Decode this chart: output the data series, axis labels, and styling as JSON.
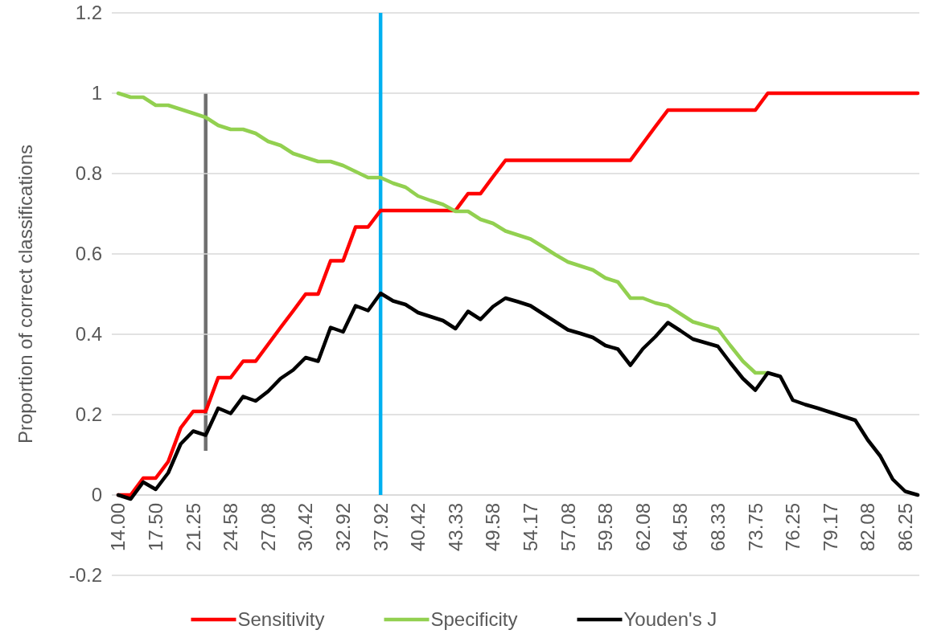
{
  "chart_data": {
    "type": "line",
    "ylabel": "Proportion of correct classifications",
    "categories": [
      "14.00",
      null,
      null,
      "17.50",
      null,
      null,
      "21.25",
      null,
      null,
      "24.58",
      null,
      null,
      "27.08",
      null,
      null,
      "30.42",
      null,
      null,
      "32.92",
      null,
      null,
      "37.92",
      null,
      null,
      "40.42",
      null,
      null,
      "43.33",
      null,
      null,
      "49.58",
      null,
      null,
      "54.17",
      null,
      null,
      "57.08",
      null,
      null,
      "59.58",
      null,
      null,
      "62.08",
      null,
      null,
      "64.58",
      null,
      null,
      "68.33",
      null,
      null,
      "73.75",
      null,
      null,
      "76.25",
      null,
      null,
      "79.17",
      null,
      null,
      "82.08",
      null,
      null,
      "86.25",
      null
    ],
    "series": [
      {
        "name": "Sensitivity",
        "color": "#ff0000",
        "values": [
          0,
          0,
          0.042,
          0.042,
          0.083,
          0.167,
          0.208,
          0.208,
          0.292,
          0.292,
          0.333,
          0.333,
          0.375,
          0.417,
          0.458,
          0.5,
          0.5,
          0.583,
          0.583,
          0.667,
          0.667,
          0.708,
          0.708,
          0.708,
          0.708,
          0.708,
          0.708,
          0.708,
          0.75,
          0.75,
          0.792,
          0.833,
          0.833,
          0.833,
          0.833,
          0.833,
          0.833,
          0.833,
          0.833,
          0.833,
          0.833,
          0.833,
          0.875,
          0.917,
          0.958,
          0.958,
          0.958,
          0.958,
          0.958,
          0.958,
          0.958,
          0.958,
          1,
          1,
          1,
          1,
          1,
          1,
          1,
          1,
          1,
          1,
          1,
          1,
          1
        ]
      },
      {
        "name": "Specificity",
        "color": "#92d050",
        "values": [
          1,
          0.99,
          0.99,
          0.97,
          0.97,
          0.96,
          0.95,
          0.94,
          0.92,
          0.91,
          0.91,
          0.9,
          0.88,
          0.87,
          0.85,
          0.84,
          0.83,
          0.83,
          0.82,
          0.805,
          0.79,
          0.79,
          0.776,
          0.766,
          0.744,
          0.733,
          0.723,
          0.706,
          0.706,
          0.686,
          0.676,
          0.657,
          0.647,
          0.637,
          0.618,
          0.598,
          0.58,
          0.57,
          0.56,
          0.54,
          0.53,
          0.49,
          0.49,
          0.478,
          0.471,
          0.451,
          0.431,
          0.422,
          0.413,
          0.372,
          0.333,
          0.304,
          0.304,
          null,
          null,
          null,
          null,
          null,
          null,
          null,
          null,
          null,
          null,
          null,
          null
        ]
      },
      {
        "name": "Youden's J",
        "color": "#000000",
        "values": [
          0,
          -0.01,
          0.032,
          0.014,
          0.055,
          0.127,
          0.159,
          0.149,
          0.216,
          0.203,
          0.245,
          0.234,
          0.258,
          0.29,
          0.311,
          0.342,
          0.333,
          0.417,
          0.406,
          0.471,
          0.459,
          0.502,
          0.483,
          0.474,
          0.454,
          0.444,
          0.434,
          0.414,
          0.457,
          0.437,
          0.469,
          0.49,
          0.481,
          0.471,
          0.451,
          0.431,
          0.411,
          0.402,
          0.392,
          0.372,
          0.363,
          0.323,
          0.364,
          0.394,
          0.429,
          0.409,
          0.388,
          0.379,
          0.37,
          0.329,
          0.29,
          0.261,
          0.304,
          0.295,
          0.236,
          0.225,
          0.216,
          0.206,
          0.196,
          0.186,
          0.137,
          0.097,
          0.039,
          0.009,
          0
        ]
      }
    ],
    "ylim": [
      -0.2,
      1.2
    ],
    "yticks": [
      -0.2,
      0,
      0.2,
      0.4,
      0.6,
      0.8,
      1,
      1.2
    ],
    "grid": "y",
    "legend": "bottom",
    "line_style": "solid",
    "ref_lines": [
      {
        "axis": "x",
        "value": "37.92",
        "color": "#00b0f0"
      }
    ]
  }
}
